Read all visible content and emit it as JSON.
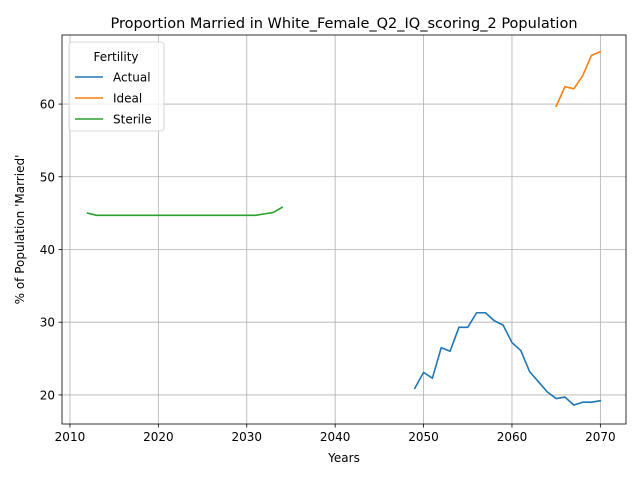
{
  "chart_data": {
    "type": "line",
    "title": "Proportion Married in White_Female_Q2_IQ_scoring_2 Population",
    "xlabel": "Years",
    "ylabel": "% of Population 'Married'",
    "xlim": [
      2009.1,
      2072.9
    ],
    "ylim": [
      16.0,
      69.5
    ],
    "xticks": [
      2010,
      2020,
      2030,
      2040,
      2050,
      2060,
      2070
    ],
    "yticks": [
      20,
      30,
      40,
      50,
      60
    ],
    "grid": true,
    "legend": {
      "title": "Fertility",
      "position": "top-left"
    },
    "series": [
      {
        "name": "Actual",
        "color": "#1f77b4",
        "x": [
          2049,
          2050,
          2051,
          2052,
          2053,
          2054,
          2055,
          2056,
          2057,
          2058,
          2059,
          2060,
          2061,
          2062,
          2063,
          2064,
          2065,
          2066,
          2067,
          2068,
          2069,
          2070
        ],
        "y": [
          20.9,
          23.1,
          22.3,
          26.5,
          26.0,
          29.3,
          29.3,
          31.3,
          31.3,
          30.2,
          29.6,
          27.2,
          26.1,
          23.2,
          21.8,
          20.4,
          19.5,
          19.7,
          18.6,
          19.0,
          19.0,
          19.2
        ]
      },
      {
        "name": "Ideal",
        "color": "#ff7f0e",
        "x": [
          2065,
          2066,
          2067,
          2068,
          2069,
          2070
        ],
        "y": [
          59.7,
          62.4,
          62.1,
          63.9,
          66.7,
          67.2
        ]
      },
      {
        "name": "Sterile",
        "color": "#2ca02c",
        "x": [
          2012,
          2013,
          2014,
          2015,
          2016,
          2017,
          2018,
          2019,
          2020,
          2021,
          2022,
          2023,
          2024,
          2025,
          2026,
          2027,
          2028,
          2029,
          2030,
          2031,
          2032,
          2033,
          2034
        ],
        "y": [
          45.0,
          44.7,
          44.7,
          44.7,
          44.7,
          44.7,
          44.7,
          44.7,
          44.7,
          44.7,
          44.7,
          44.7,
          44.7,
          44.7,
          44.7,
          44.7,
          44.7,
          44.7,
          44.7,
          44.7,
          44.9,
          45.1,
          45.8
        ]
      }
    ]
  }
}
